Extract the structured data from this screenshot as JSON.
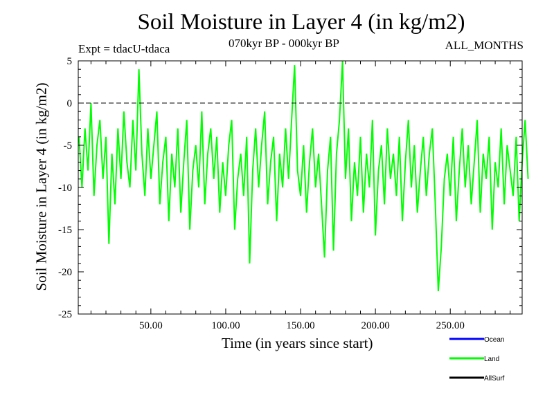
{
  "chart_data": {
    "type": "line",
    "title": "Soil Moisture in Layer 4 (in kg/m2)",
    "subtitle_left": "Expt = tdacU-tdaca",
    "subtitle_center": "070kyr BP - 000kyr BP",
    "subtitle_right": "ALL_MONTHS",
    "xlabel": "Time (in years since start)",
    "ylabel": "Soil Moisture in Layer 4 (in kg/m2)",
    "xlim": [
      1.5,
      298
    ],
    "ylim": [
      -25,
      5
    ],
    "xticks": [
      50,
      100,
      150,
      200,
      250
    ],
    "xtick_labels": [
      "50.00",
      "100.00",
      "150.00",
      "200.00",
      "250.00"
    ],
    "yticks": [
      5,
      0,
      -5,
      -10,
      -15,
      -20,
      -25
    ],
    "ytick_labels": [
      "5",
      "0",
      "-5",
      "-10",
      "-15",
      "-20",
      "-25"
    ],
    "reference_line": 0,
    "legend": [
      {
        "name": "Ocean",
        "color": "#0000ff"
      },
      {
        "name": "Land",
        "color": "#00ff00"
      },
      {
        "name": "AllSurf",
        "color": "#000000"
      }
    ],
    "legend_placement": "bottom-right",
    "series": [
      {
        "name": "Land",
        "color": "#00ff00",
        "x_start": 2,
        "x_step": 2,
        "values": [
          -4,
          -10,
          -3,
          -8,
          0,
          -11,
          -5,
          -2,
          -9,
          -4,
          -16.7,
          -6,
          -12,
          -3,
          -9,
          -1,
          -7,
          -10,
          -2,
          -8,
          4,
          -6,
          -11,
          -3,
          -9,
          -5,
          -1,
          -12,
          -7,
          -4,
          -14,
          -6,
          -10,
          -3,
          -13,
          -7,
          -2,
          -15,
          -8,
          -5,
          -10,
          -1,
          -12,
          -6,
          -3,
          -9,
          -4,
          -13,
          -7,
          -11,
          -5,
          -2,
          -15,
          -9,
          -6,
          -11,
          -4,
          -19,
          -8,
          -3,
          -10,
          -5,
          -1,
          -12,
          -7,
          -4,
          -14,
          -6,
          -10,
          -3,
          -9,
          -2,
          4.5,
          -8,
          -11,
          -5,
          -13,
          -7,
          -3,
          -10,
          -6,
          -12,
          -18.3,
          -8,
          -4,
          -17.5,
          -6,
          -2,
          5,
          -9,
          -3,
          -14,
          -7,
          -11,
          -4,
          -13,
          -6,
          -10,
          -2,
          -15.7,
          -8,
          -5,
          -12,
          -3,
          -9,
          -6,
          -11,
          -4,
          -14,
          -7,
          -2,
          -10,
          -5,
          -13,
          -8,
          -4,
          -11,
          -6,
          -3,
          -12,
          -22.3,
          -17,
          -9,
          -6,
          -11,
          -4,
          -14,
          -8,
          -3,
          -10,
          -5,
          -12,
          -7,
          -2,
          -13,
          -6,
          -9,
          -4,
          -15,
          -7,
          -10,
          -3,
          -12,
          -5,
          -8,
          -11,
          -4,
          -14,
          -7,
          -2,
          -9
        ]
      }
    ]
  }
}
